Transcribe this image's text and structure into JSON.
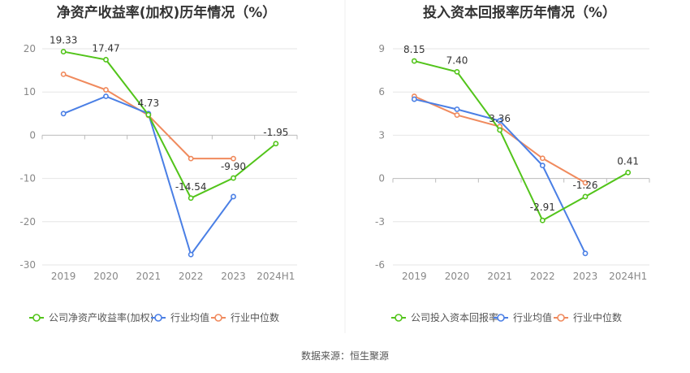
{
  "source_label": "数据来源：恒生聚源",
  "colors": {
    "company": "#52C41A",
    "industry_avg": "#4A7FE5",
    "industry_median": "#F08A5D",
    "grid": "#E6E6E6",
    "axis_text": "#888888",
    "title": "#333333"
  },
  "chart_data": [
    {
      "type": "line",
      "title": "净资产收益率(加权)历年情况（%）",
      "categories": [
        "2019",
        "2020",
        "2021",
        "2022",
        "2023",
        "2024H1"
      ],
      "ylim": [
        -30,
        20
      ],
      "yticks": [
        20,
        10,
        0,
        -10,
        -20,
        -30
      ],
      "ytick_labels": [
        "20",
        "10",
        "0",
        "-10",
        "-20",
        "-30"
      ],
      "series": [
        {
          "name": "公司净资产收益率(加权)",
          "color_key": "company",
          "values": [
            19.33,
            17.47,
            4.73,
            -14.54,
            -9.9,
            -1.95
          ],
          "labels": [
            "19.33",
            "17.47",
            "4.73",
            "-14.54",
            "-9.90",
            "-1.95"
          ]
        },
        {
          "name": "行业均值",
          "color_key": "industry_avg",
          "values": [
            5.0,
            9.0,
            5.0,
            -27.6,
            -14.2,
            null
          ]
        },
        {
          "name": "行业中位数",
          "color_key": "industry_median",
          "values": [
            14.1,
            10.5,
            4.6,
            -5.4,
            -5.4,
            null
          ]
        }
      ]
    },
    {
      "type": "line",
      "title": "投入资本回报率历年情况（%）",
      "categories": [
        "2019",
        "2020",
        "2021",
        "2022",
        "2023",
        "2024H1"
      ],
      "ylim": [
        -6,
        9
      ],
      "yticks": [
        9,
        6,
        3,
        0,
        -3,
        -6
      ],
      "ytick_labels": [
        "9",
        "6",
        "3",
        "0",
        "-3",
        "-6"
      ],
      "series": [
        {
          "name": "公司投入资本回报率",
          "color_key": "company",
          "values": [
            8.15,
            7.4,
            3.36,
            -2.91,
            -1.26,
            0.41
          ],
          "labels": [
            "8.15",
            "7.40",
            "3.36",
            "-2.91",
            "-1.26",
            "0.41"
          ]
        },
        {
          "name": "行业均值",
          "color_key": "industry_avg",
          "values": [
            5.5,
            4.8,
            4.0,
            0.9,
            -5.2,
            null
          ]
        },
        {
          "name": "行业中位数",
          "color_key": "industry_median",
          "values": [
            5.7,
            4.4,
            3.6,
            1.4,
            -0.3,
            null
          ]
        }
      ]
    }
  ]
}
